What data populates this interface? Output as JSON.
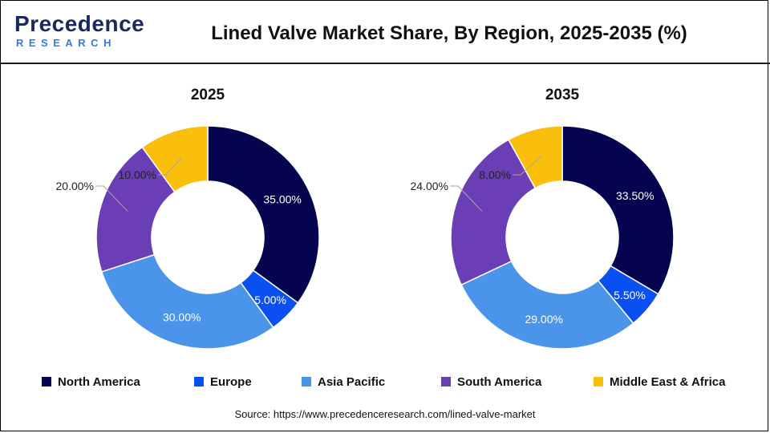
{
  "header": {
    "logo_brand": "Precedence",
    "logo_sub": "RESEARCH",
    "title": "Lined Valve Market Share, By Region, 2025-2035 (%)"
  },
  "source": "Source: https://www.precedenceresearch.com/lined-valve-market",
  "colors": {
    "North America": "#05054f",
    "Europe": "#0a4ff0",
    "Asia Pacific": "#4a94ea",
    "South America": "#6a3eb5",
    "Middle East & Africa": "#f9bf0a"
  },
  "chart_data": [
    {
      "type": "pie",
      "donut": true,
      "title": "2025",
      "categories": [
        "North America",
        "Europe",
        "Asia Pacific",
        "South America",
        "Middle East & Africa"
      ],
      "values": [
        35.0,
        5.0,
        30.0,
        20.0,
        10.0
      ],
      "labels": [
        "35.00%",
        "5.00%",
        "30.00%",
        "20.00%",
        "10.00%"
      ],
      "legend_position": "bottom"
    },
    {
      "type": "pie",
      "donut": true,
      "title": "2035",
      "categories": [
        "North America",
        "Europe",
        "Asia Pacific",
        "South America",
        "Middle East & Africa"
      ],
      "values": [
        33.5,
        5.5,
        29.0,
        24.0,
        8.0
      ],
      "labels": [
        "33.50%",
        "5.50%",
        "29.00%",
        "24.00%",
        "8.00%"
      ],
      "legend_position": "bottom"
    }
  ],
  "legend": [
    "North America",
    "Europe",
    "Asia Pacific",
    "South America",
    "Middle East & Africa"
  ]
}
